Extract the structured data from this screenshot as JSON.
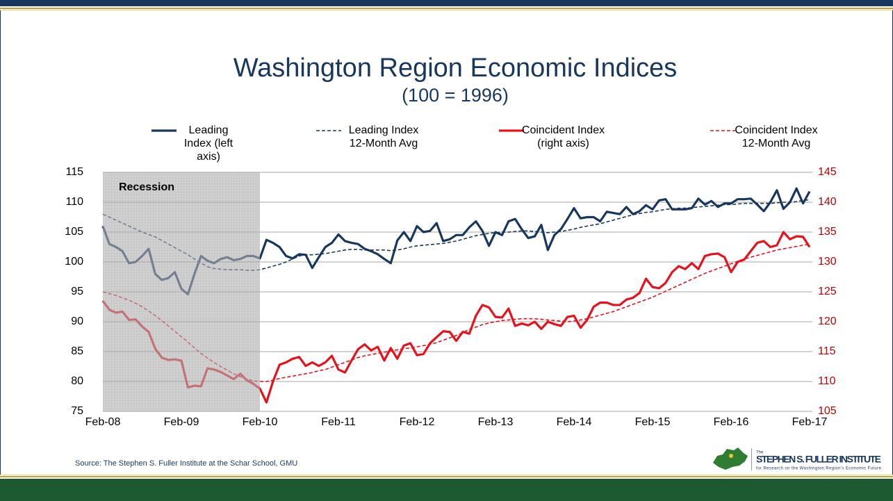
{
  "slide": {
    "source": "Source: The Stephen S. Fuller Institute at the Schar School, GMU",
    "logo": {
      "small": "The",
      "name": "STEPHEN S. FULLER INSTITUTE",
      "tagline": "for Research on the Washington Region's Economic Future"
    }
  },
  "chart_data": {
    "type": "line",
    "title": "Washington Region Economic Indices",
    "subtitle": "(100 = 1996)",
    "categories": [
      "Feb-08",
      null,
      null,
      null,
      null,
      null,
      null,
      null,
      null,
      null,
      null,
      null,
      "Feb-09",
      null,
      null,
      null,
      null,
      null,
      null,
      null,
      null,
      null,
      null,
      null,
      "Feb-10",
      null,
      null,
      null,
      null,
      null,
      null,
      null,
      null,
      null,
      null,
      null,
      "Feb-11",
      null,
      null,
      null,
      null,
      null,
      null,
      null,
      null,
      null,
      null,
      null,
      "Feb-12",
      null,
      null,
      null,
      null,
      null,
      null,
      null,
      null,
      null,
      null,
      null,
      "Feb-13",
      null,
      null,
      null,
      null,
      null,
      null,
      null,
      null,
      null,
      null,
      null,
      "Feb-14",
      null,
      null,
      null,
      null,
      null,
      null,
      null,
      null,
      null,
      null,
      null,
      "Feb-15",
      null,
      null,
      null,
      null,
      null,
      null,
      null,
      null,
      null,
      null,
      null,
      "Feb-16",
      null,
      null,
      null,
      null,
      null,
      null,
      null,
      null,
      null,
      null,
      null,
      "Feb-17"
    ],
    "shaded": {
      "label": "Recession",
      "from": "Feb-08",
      "to": "Feb-10"
    },
    "ylim": [
      75,
      115
    ],
    "yticks": [
      75,
      80,
      85,
      90,
      95,
      100,
      105,
      110,
      115
    ],
    "y2lim": [
      105,
      145
    ],
    "y2ticks": [
      105,
      110,
      115,
      120,
      125,
      130,
      135,
      140,
      145
    ],
    "grid": true,
    "legend": "top",
    "series": [
      {
        "name": "Leading Index (left axis)",
        "color": "#17375e",
        "dashed": false,
        "values": [
          106,
          103,
          102.5,
          101.8,
          99.8,
          100,
          101,
          102.2,
          98,
          97,
          97.3,
          98.3,
          95.5,
          94.6,
          98,
          101,
          100.2,
          99.8,
          100.5,
          100.8,
          100.3,
          100.5,
          101,
          101,
          100.6,
          103.7,
          103.2,
          102.5,
          101,
          100.6,
          101.3,
          101.2,
          99,
          100.8,
          102.5,
          103.2,
          104.6,
          103.5,
          103.2,
          103,
          102.2,
          101.8,
          101.3,
          100.5,
          99.8,
          103.6,
          105,
          103.5,
          106,
          105,
          105.2,
          106.5,
          103.5,
          103.8,
          104.5,
          104.5,
          105.8,
          106.8,
          105.2,
          102.7,
          105,
          104.5,
          106.8,
          107.2,
          105.5,
          104,
          104.3,
          106.2,
          102,
          104.5,
          105.5,
          107.2,
          109,
          107.3,
          107.5,
          107.5,
          106.8,
          108.4,
          108.2,
          108,
          109.2,
          108,
          108.5,
          109.5,
          108.8,
          110.3,
          110.5,
          108.8,
          108.8,
          108.8,
          109,
          110.6,
          109.6,
          110.2,
          109.2,
          109.8,
          109.8,
          110.5,
          110.5,
          110.6,
          109.6,
          108.5,
          110,
          112,
          108.9,
          110,
          112.3,
          109.8,
          111.8
        ]
      },
      {
        "name": "Leading Index 12-Month Avg",
        "color": "#17375e",
        "dashed": true,
        "values": [
          108,
          107.5,
          107,
          106.5,
          106,
          105.5,
          105,
          104.6,
          104.2,
          103.6,
          103,
          102.4,
          101.8,
          101.2,
          100.5,
          99.8,
          99.2,
          98.9,
          98.8,
          98.7,
          98.7,
          98.7,
          98.6,
          98.6,
          98.7,
          99,
          99.3,
          99.6,
          100,
          100.5,
          101,
          101.2,
          101.2,
          101.3,
          101.4,
          101.6,
          101.8,
          102,
          102.1,
          102.1,
          102,
          102,
          102,
          102,
          101.9,
          102,
          102.2,
          102.5,
          102.7,
          102.8,
          102.9,
          103,
          103.1,
          103.3,
          103.5,
          103.8,
          104.1,
          104.4,
          104.6,
          104.8,
          104.9,
          105,
          105,
          105.1,
          105.2,
          105.2,
          105.1,
          105,
          104.9,
          105,
          105.1,
          105.3,
          105.5,
          105.8,
          106,
          106.2,
          106.4,
          106.7,
          107,
          107.3,
          107.6,
          107.9,
          108.1,
          108.3,
          108.4,
          108.6,
          108.8,
          108.9,
          109,
          109,
          109.1,
          109.2,
          109.3,
          109.4,
          109.5,
          109.6,
          109.6,
          109.7,
          109.8,
          109.8,
          109.8,
          109.8,
          109.8,
          109.9,
          110,
          110,
          110.1,
          110.3,
          110.4
        ]
      },
      {
        "name": "Coincident Index (right axis)",
        "color": "#e8101a",
        "dashed": false,
        "axis": "y2",
        "values": [
          123.5,
          122,
          121.5,
          121.7,
          120.3,
          120.4,
          119.2,
          118.3,
          115.5,
          114,
          113.6,
          113.7,
          113.5,
          109,
          109.3,
          109.2,
          112.2,
          112,
          111.6,
          111,
          110.4,
          111.3,
          110.2,
          109.6,
          108.8,
          106.5,
          110,
          112.8,
          113.2,
          113.8,
          114.1,
          112.6,
          113.2,
          112.6,
          113.2,
          114.3,
          112,
          111.5,
          113.5,
          115.4,
          116.2,
          115.2,
          115.8,
          113.5,
          115.6,
          113.8,
          116,
          116.4,
          114.4,
          114.6,
          116.4,
          117.4,
          118.4,
          118.3,
          116.8,
          118.3,
          118,
          121,
          122.8,
          122.4,
          120.8,
          120.7,
          122.2,
          119.3,
          119.7,
          119.4,
          120,
          118.8,
          120,
          119.6,
          119.3,
          120.8,
          121,
          119,
          120.3,
          122.5,
          123.2,
          123.2,
          122.8,
          122.8,
          123.7,
          124,
          124.8,
          127.2,
          125.8,
          125.6,
          126.5,
          128.3,
          129.3,
          128.8,
          129.8,
          128.8,
          131,
          131.3,
          131.4,
          130.8,
          128.3,
          130,
          130.4,
          131.8,
          133.2,
          133.5,
          132.5,
          132.8,
          135,
          133.8,
          134.3,
          134.2,
          132.5
        ]
      },
      {
        "name": "Coincident Index 12-Month Avg",
        "color": "#e8101a",
        "dashed": true,
        "axis": "y2",
        "values": [
          125,
          124.7,
          124.4,
          124,
          123.6,
          123.1,
          122.5,
          121.8,
          121,
          120.2,
          119.3,
          118.4,
          117.5,
          116.6,
          115.6,
          114.7,
          113.9,
          113.2,
          112.5,
          111.9,
          111.3,
          110.8,
          110.4,
          110.1,
          110,
          110,
          110.2,
          110.5,
          110.7,
          110.9,
          111.1,
          111.3,
          111.5,
          111.8,
          112,
          112.4,
          112.8,
          113.2,
          113.6,
          114,
          114.3,
          114.5,
          114.7,
          114.9,
          115.1,
          115.3,
          115.5,
          115.6,
          115.8,
          116,
          116.2,
          116.5,
          116.9,
          117.3,
          117.7,
          118.2,
          118.7,
          119.1,
          119.5,
          119.8,
          120,
          120.2,
          120.3,
          120.4,
          120.5,
          120.5,
          120.5,
          120.4,
          120.3,
          120.2,
          120.1,
          120,
          120.1,
          120.3,
          120.5,
          120.8,
          121.1,
          121.4,
          121.7,
          122.1,
          122.5,
          122.9,
          123.3,
          123.7,
          124.1,
          124.6,
          125.1,
          125.6,
          126.1,
          126.6,
          127.1,
          127.6,
          128.1,
          128.5,
          128.9,
          129.3,
          129.7,
          130.1,
          130.5,
          130.8,
          131.1,
          131.4,
          131.7,
          132,
          132.2,
          132.4,
          132.6,
          132.8,
          133
        ]
      }
    ]
  }
}
